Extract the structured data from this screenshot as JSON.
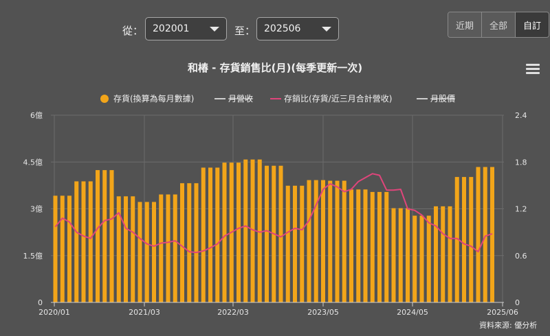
{
  "filters": {
    "from_label": "從：",
    "from_value": "202001",
    "to_label": "至：",
    "to_value": "202506"
  },
  "range_tabs": [
    "近期",
    "全部",
    "自訂"
  ],
  "chart_data": {
    "type": "bar",
    "title": "和椿 - 存貨銷售比(月)(每季更新一次)",
    "legend": {
      "placement": "top",
      "items": [
        {
          "label": "存貨(換算為每月數據)",
          "marker": "dot",
          "color": "#f2a51a",
          "hidden": false
        },
        {
          "label": "月營收",
          "marker": "line",
          "color": "#cfcfcf",
          "hidden": true
        },
        {
          "label": "存銷比(存貨/近三月合計營收)",
          "marker": "line",
          "color": "#e0457b",
          "hidden": false
        },
        {
          "label": "月股價",
          "marker": "line",
          "color": "#cfcfcf",
          "hidden": true
        }
      ]
    },
    "x_ticks": [
      "2020/01",
      "2021/03",
      "2022/03",
      "2023/05",
      "2024/05",
      "2025/06"
    ],
    "y_left": {
      "ticks": [
        "0",
        "1.5億",
        "3億",
        "4.5億",
        "6億"
      ],
      "min": 0,
      "max": 6
    },
    "y_right": {
      "ticks": [
        "0",
        "0.6",
        "1.2",
        "1.8",
        "2.4"
      ],
      "min": 0,
      "max": 2.4
    },
    "grid": true,
    "series": [
      {
        "name": "存貨(換算為每月數據)",
        "type": "bar",
        "axis": "left",
        "color": "#f2a51a",
        "values": [
          3.42,
          3.42,
          3.42,
          3.88,
          3.88,
          3.88,
          4.24,
          4.24,
          4.24,
          3.4,
          3.4,
          3.4,
          3.22,
          3.22,
          3.22,
          3.46,
          3.46,
          3.46,
          3.82,
          3.82,
          3.82,
          4.32,
          4.32,
          4.32,
          4.48,
          4.48,
          4.48,
          4.58,
          4.58,
          4.58,
          4.38,
          4.38,
          4.38,
          3.74,
          3.74,
          3.74,
          3.92,
          3.92,
          3.92,
          3.9,
          3.9,
          3.9,
          3.62,
          3.62,
          3.62,
          3.54,
          3.54,
          3.54,
          3.02,
          3.02,
          3.02,
          2.78,
          2.78,
          2.78,
          3.08,
          3.08,
          3.08,
          4.02,
          4.02,
          4.02,
          4.34,
          4.34,
          4.34
        ]
      },
      {
        "name": "存銷比(存貨/近三月合計營收)",
        "type": "line",
        "axis": "right",
        "color": "#e0457b",
        "values": [
          0.97,
          1.08,
          1.03,
          0.9,
          0.85,
          0.82,
          0.95,
          1.05,
          1.07,
          1.15,
          0.95,
          0.9,
          0.82,
          0.75,
          0.72,
          0.76,
          0.77,
          0.79,
          0.72,
          0.65,
          0.64,
          0.66,
          0.7,
          0.75,
          0.85,
          0.9,
          0.95,
          0.98,
          0.93,
          0.9,
          0.92,
          0.88,
          0.84,
          0.9,
          0.95,
          0.93,
          1.05,
          1.25,
          1.45,
          1.52,
          1.48,
          1.42,
          1.45,
          1.55,
          1.6,
          1.65,
          1.63,
          1.44,
          1.44,
          1.45,
          1.2,
          1.18,
          1.12,
          1.02,
          0.98,
          0.88,
          0.82,
          0.82,
          0.75,
          0.72,
          0.65,
          0.85,
          0.88
        ]
      }
    ],
    "source": "資料來源: 優分析"
  }
}
